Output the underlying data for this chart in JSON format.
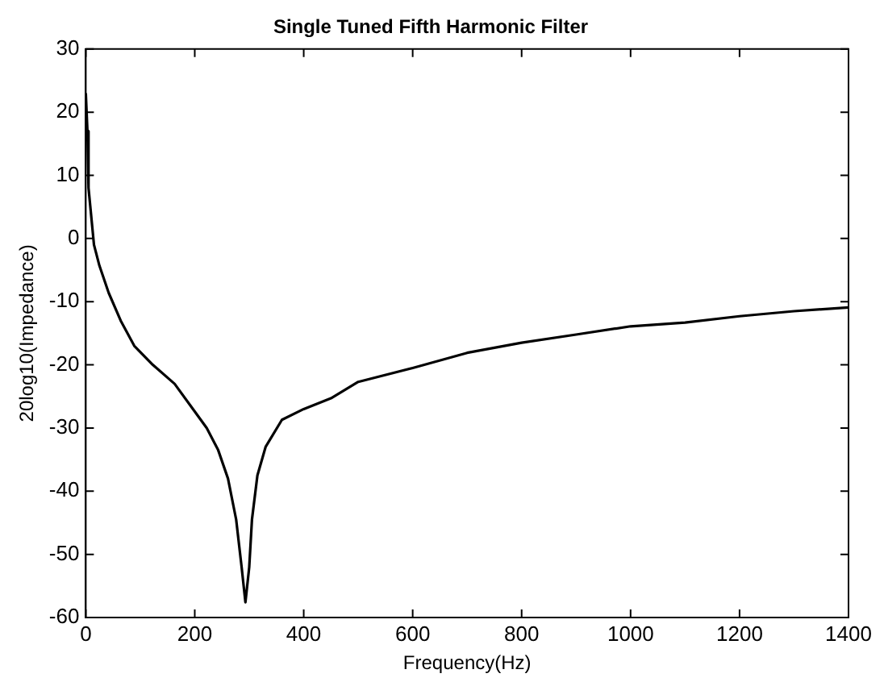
{
  "chart_data": {
    "type": "line",
    "title": "Single Tuned Fifth Harmonic Filter",
    "xlabel": "Frequency(Hz)",
    "ylabel": "20log10(Impedance)",
    "xlim": [
      0,
      1400
    ],
    "xticks": [
      0,
      200,
      400,
      600,
      800,
      1000,
      1200,
      1400
    ],
    "ylim": [
      -60,
      30
    ],
    "yticks": [
      -60,
      -50,
      -40,
      -30,
      -20,
      -10,
      0,
      10,
      20,
      30
    ],
    "grid": false,
    "legend": false,
    "marker": "none",
    "line_style": "solid",
    "series": [
      {
        "color": "#000000",
        "x": [
          0,
          3,
          5,
          15,
          25,
          42,
          64,
          89,
          123,
          163,
          200,
          222,
          243,
          261,
          276,
          286,
          293,
          300,
          305,
          315,
          330,
          360,
          400,
          450,
          500,
          600,
          700,
          800,
          900,
          1000,
          1100,
          1200,
          1300,
          1400
        ],
        "values": [
          23,
          17,
          8,
          -1,
          -4.3,
          -8.6,
          -13,
          -17,
          -20,
          -23,
          -27.4,
          -30,
          -33.5,
          -38,
          -44.5,
          -52,
          -57.6,
          -52,
          -44.5,
          -37.5,
          -33,
          -28.7,
          -27,
          -25.3,
          -22.7,
          -20.5,
          -18.1,
          -16.5,
          -15.2,
          -13.9,
          -13.3,
          -12.3,
          -11.5,
          -10.9
        ]
      }
    ]
  }
}
